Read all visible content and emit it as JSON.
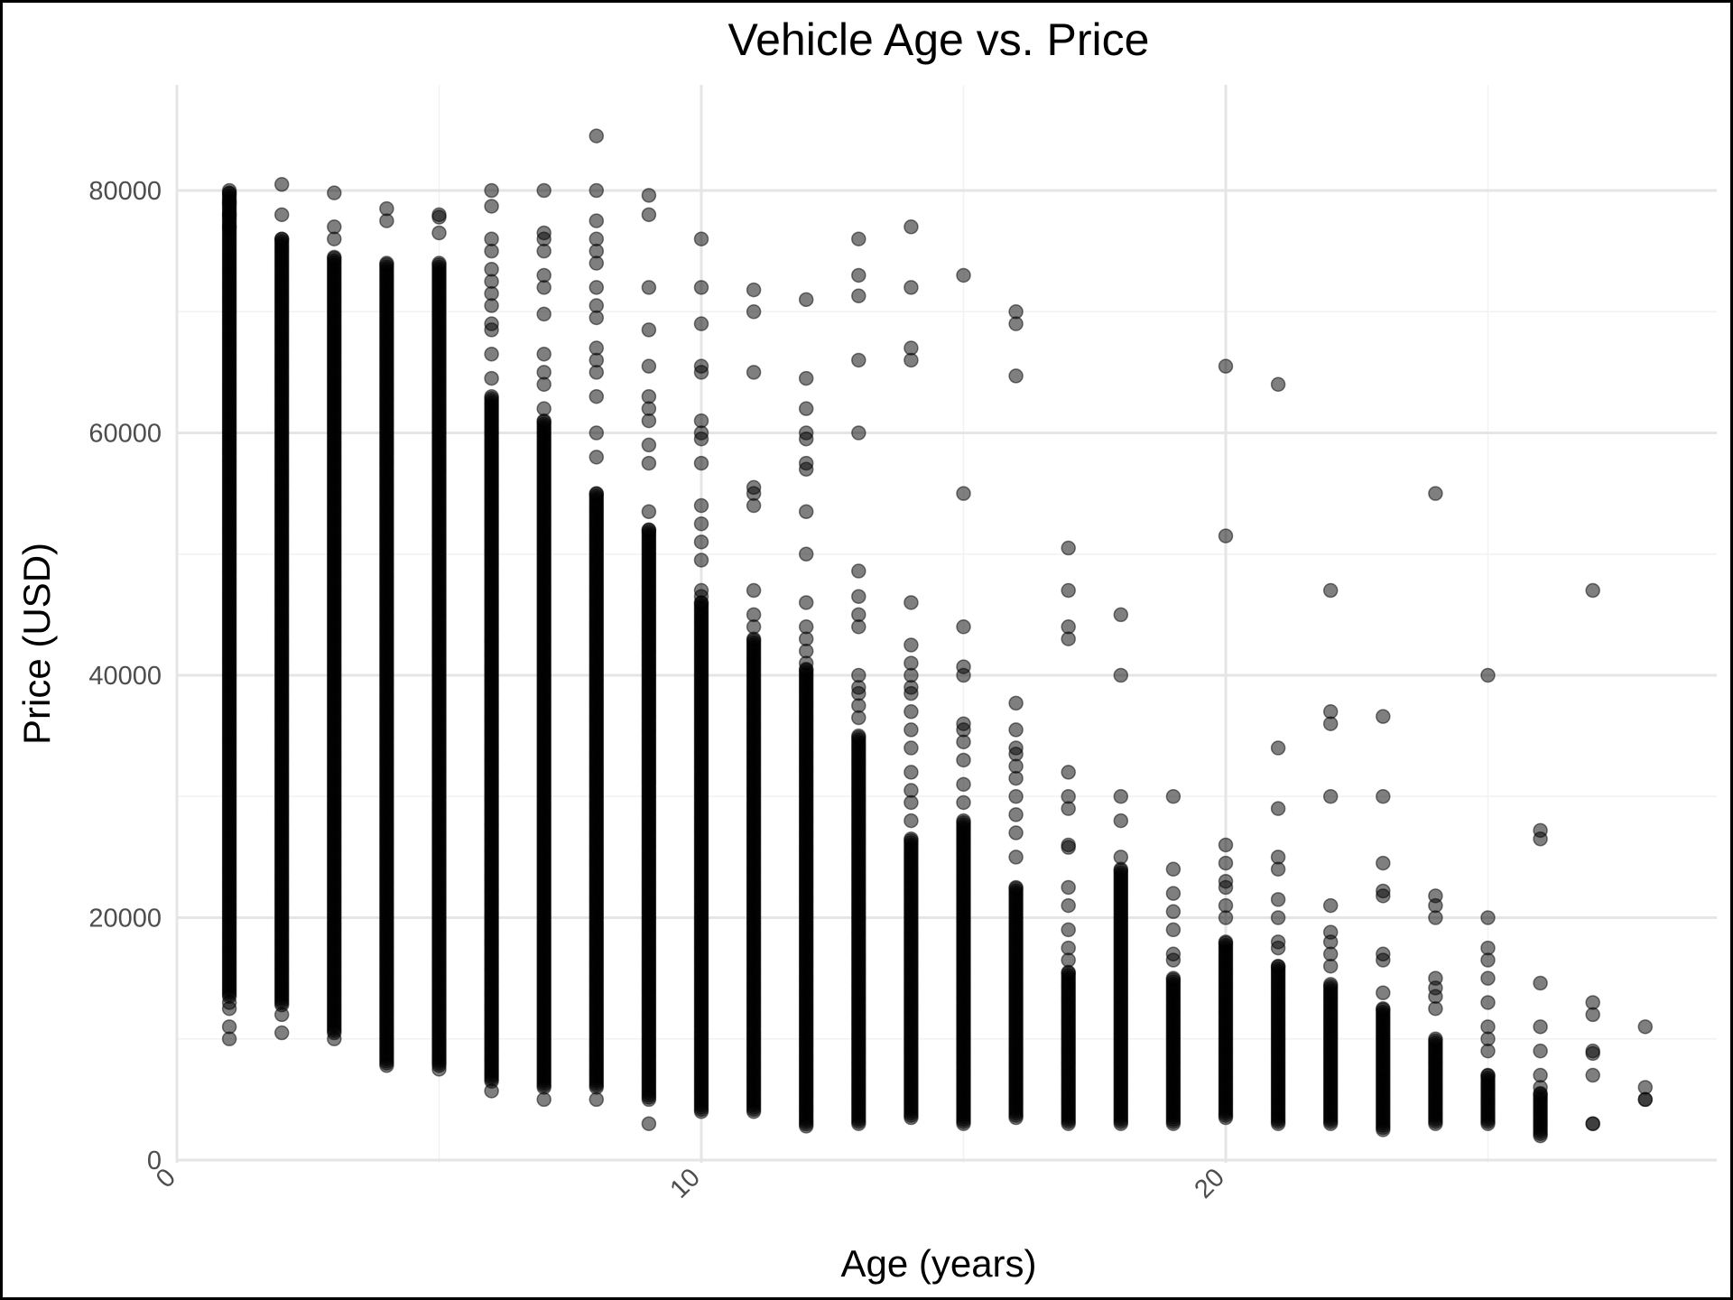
{
  "chart_data": {
    "type": "scatter",
    "title": "Vehicle Age vs. Price",
    "xlabel": "Age (years)",
    "ylabel": "Price (USD)",
    "xlim": [
      0,
      29.3
    ],
    "ylim": [
      0,
      88000
    ],
    "x_ticks": [
      0,
      10,
      20
    ],
    "x_tick_labels": [
      "0",
      "10",
      "20"
    ],
    "y_ticks": [
      0,
      20000,
      40000,
      60000,
      80000
    ],
    "y_tick_labels": [
      "0",
      "20000",
      "40000",
      "60000",
      "80000"
    ],
    "grid": true,
    "point_color": "#000000",
    "point_opacity": 0.5,
    "columns": [
      {
        "age": 1,
        "min": 13500,
        "max": 79800,
        "outliers": [
          10000,
          11000,
          12500,
          13000,
          80000,
          79000,
          78000,
          77000
        ]
      },
      {
        "age": 2,
        "min": 12800,
        "max": 76000,
        "outliers": [
          10500,
          12000,
          78000,
          80500
        ]
      },
      {
        "age": 3,
        "min": 10500,
        "max": 74500,
        "outliers": [
          10000,
          76000,
          77000,
          79800
        ]
      },
      {
        "age": 4,
        "min": 8000,
        "max": 74000,
        "outliers": [
          7800,
          77500,
          78500
        ]
      },
      {
        "age": 5,
        "min": 7800,
        "max": 74000,
        "outliers": [
          7500,
          76500,
          77800,
          78000
        ]
      },
      {
        "age": 6,
        "min": 6500,
        "max": 63000,
        "outliers": [
          5700,
          64500,
          66500,
          68500,
          69000,
          70500,
          71500,
          72500,
          73500,
          75000,
          76000,
          78700,
          80000
        ]
      },
      {
        "age": 7,
        "min": 6000,
        "max": 61000,
        "outliers": [
          5000,
          62000,
          64000,
          65000,
          66500,
          69800,
          72000,
          73000,
          75000,
          76000,
          76500,
          80000
        ]
      },
      {
        "age": 8,
        "min": 6000,
        "max": 55000,
        "outliers": [
          5000,
          58000,
          60000,
          63000,
          65000,
          66000,
          67000,
          69500,
          70500,
          72000,
          74000,
          75000,
          76000,
          77500,
          80000,
          84500
        ]
      },
      {
        "age": 9,
        "min": 5000,
        "max": 52000,
        "outliers": [
          3000,
          53500,
          57500,
          59000,
          61000,
          62000,
          63000,
          65500,
          68500,
          72000,
          78000,
          79600
        ]
      },
      {
        "age": 10,
        "min": 4000,
        "max": 46000,
        "outliers": [
          46500,
          47000,
          49500,
          51000,
          52500,
          54000,
          57500,
          59500,
          60000,
          61000,
          65000,
          65500,
          69000,
          72000,
          76000
        ]
      },
      {
        "age": 11,
        "min": 4000,
        "max": 43000,
        "outliers": [
          44000,
          45000,
          47000,
          54000,
          55000,
          55500,
          65000,
          70000,
          71800
        ]
      },
      {
        "age": 12,
        "min": 2800,
        "max": 40500,
        "outliers": [
          41000,
          42000,
          43000,
          44000,
          46000,
          50000,
          53500,
          57000,
          57500,
          59500,
          60000,
          62000,
          64500,
          71000
        ]
      },
      {
        "age": 13,
        "min": 3000,
        "max": 35000,
        "outliers": [
          36500,
          37500,
          38500,
          39000,
          40000,
          44000,
          45000,
          46500,
          48600,
          60000,
          66000,
          71300,
          73000,
          76000
        ]
      },
      {
        "age": 14,
        "min": 3500,
        "max": 26500,
        "outliers": [
          28000,
          29500,
          30500,
          32000,
          34000,
          35500,
          37000,
          38500,
          39000,
          40000,
          41000,
          42500,
          46000,
          66000,
          67000,
          72000,
          77000
        ]
      },
      {
        "age": 15,
        "min": 3000,
        "max": 28000,
        "outliers": [
          29500,
          31000,
          33000,
          34500,
          35500,
          36000,
          40000,
          40700,
          44000,
          55000,
          73000
        ]
      },
      {
        "age": 16,
        "min": 3500,
        "max": 22500,
        "outliers": [
          25000,
          27000,
          28500,
          30000,
          31500,
          32500,
          33500,
          34000,
          35500,
          37700,
          64700,
          69000,
          70000
        ]
      },
      {
        "age": 17,
        "min": 3000,
        "max": 15500,
        "outliers": [
          16500,
          17500,
          19000,
          21000,
          22500,
          25800,
          26000,
          29000,
          30000,
          32000,
          43000,
          44000,
          47000,
          50500
        ]
      },
      {
        "age": 18,
        "min": 3000,
        "max": 24000,
        "outliers": [
          25000,
          28000,
          30000,
          40000,
          45000
        ]
      },
      {
        "age": 19,
        "min": 3000,
        "max": 15000,
        "outliers": [
          16500,
          17000,
          19000,
          20500,
          22000,
          24000,
          30000
        ]
      },
      {
        "age": 20,
        "min": 3500,
        "max": 18000,
        "outliers": [
          20000,
          21000,
          22500,
          23000,
          24500,
          26000,
          51500,
          65500
        ]
      },
      {
        "age": 21,
        "min": 3000,
        "max": 16000,
        "outliers": [
          17500,
          18000,
          20000,
          21500,
          24000,
          25000,
          29000,
          34000,
          64000
        ]
      },
      {
        "age": 22,
        "min": 3000,
        "max": 14500,
        "outliers": [
          16000,
          17000,
          18000,
          18800,
          21000,
          30000,
          36000,
          37000,
          47000
        ]
      },
      {
        "age": 23,
        "min": 2500,
        "max": 12500,
        "outliers": [
          13800,
          16500,
          17000,
          21800,
          22200,
          24500,
          30000,
          36600
        ]
      },
      {
        "age": 24,
        "min": 3000,
        "max": 10000,
        "outliers": [
          12500,
          13500,
          14200,
          15000,
          20000,
          21000,
          21800,
          55000
        ]
      },
      {
        "age": 25,
        "min": 3000,
        "max": 7000,
        "outliers": [
          9000,
          10000,
          11000,
          13000,
          15000,
          16500,
          17500,
          20000,
          40000
        ]
      },
      {
        "age": 26,
        "min": 2000,
        "max": 5500,
        "outliers": [
          6000,
          7000,
          9000,
          11000,
          14600,
          26500,
          27200
        ]
      },
      {
        "age": 27,
        "min": 3000,
        "max": 3000,
        "outliers": [
          7000,
          8800,
          9000,
          12000,
          13000,
          47000
        ]
      },
      {
        "age": 28,
        "min": 5000,
        "max": 5000,
        "outliers": [
          6000,
          11000
        ]
      }
    ]
  }
}
